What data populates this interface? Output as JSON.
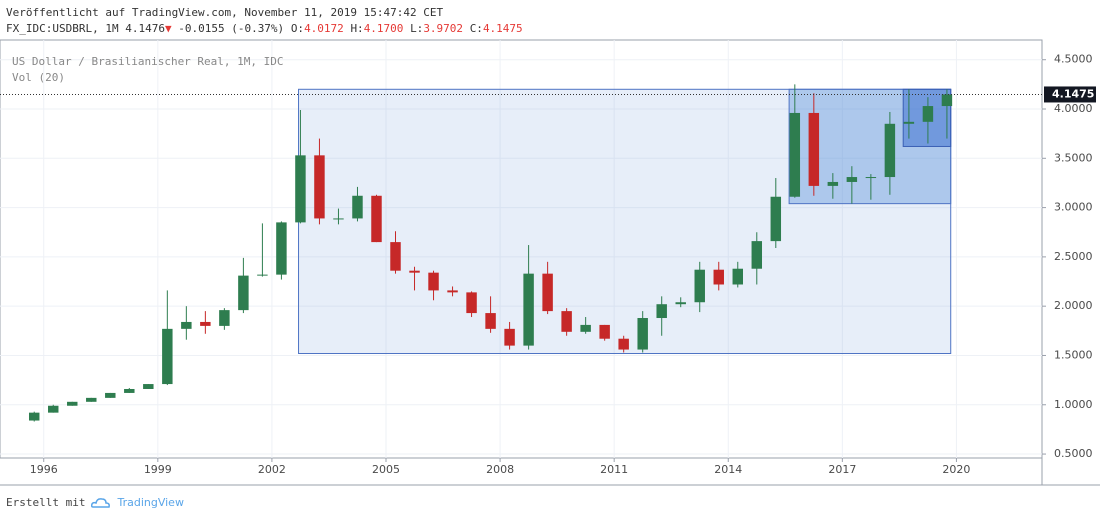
{
  "header": {
    "published": "Veröffentlicht auf TradingView.com, November 11, 2019 15:47:42 CET",
    "symbol": "FX_IDC:USDBRL, 1M",
    "last": "4.1476",
    "arrow": "▼",
    "change": "-0.0155 (-0.37%)",
    "open_label": "O:",
    "open": "4.0172",
    "high_label": "H:",
    "high": "4.1700",
    "low_label": "L:",
    "low": "3.9702",
    "close_label": "C:",
    "close": "4.1475"
  },
  "chart_data": {
    "type": "candlestick",
    "title": "US Dollar / Brasilianischer Real, 1M, IDC",
    "indicator": "Vol (20)",
    "up_color": "#2e7d4f",
    "down_color": "#c62828",
    "x": [
      1995.75,
      1996.25,
      1996.75,
      1997.25,
      1997.75,
      1998.25,
      1998.75,
      1999.25,
      1999.75,
      2000.25,
      2000.75,
      2001.25,
      2001.75,
      2002.25,
      2002.75,
      2003.25,
      2003.75,
      2004.25,
      2004.75,
      2005.25,
      2005.75,
      2006.25,
      2006.75,
      2007.25,
      2007.75,
      2008.25,
      2008.75,
      2009.25,
      2009.75,
      2010.25,
      2010.75,
      2011.25,
      2011.75,
      2012.25,
      2012.75,
      2013.25,
      2013.75,
      2014.25,
      2014.75,
      2015.25,
      2015.75,
      2016.25,
      2016.75,
      2017.25,
      2017.75,
      2018.25,
      2018.75,
      2019.25,
      2019.75
    ],
    "open": [
      0.84,
      0.92,
      0.99,
      1.03,
      1.07,
      1.12,
      1.16,
      1.21,
      1.77,
      1.84,
      1.8,
      1.96,
      2.31,
      2.32,
      2.85,
      3.53,
      2.89,
      2.89,
      3.12,
      2.65,
      2.36,
      2.34,
      2.16,
      2.14,
      1.93,
      1.77,
      1.6,
      2.33,
      1.95,
      1.74,
      1.81,
      1.67,
      1.56,
      1.88,
      2.02,
      2.04,
      2.37,
      2.22,
      2.38,
      2.66,
      3.11,
      3.96,
      3.22,
      3.26,
      3.31,
      3.31,
      3.85,
      3.87,
      4.03
    ],
    "high": [
      0.93,
      1.0,
      1.03,
      1.07,
      1.12,
      1.17,
      1.21,
      2.16,
      2.0,
      1.95,
      1.98,
      2.49,
      2.84,
      2.86,
      3.99,
      3.7,
      2.99,
      3.21,
      3.13,
      2.76,
      2.4,
      2.36,
      2.2,
      2.15,
      2.1,
      1.84,
      2.62,
      2.45,
      1.98,
      1.89,
      1.81,
      1.7,
      1.95,
      2.1,
      2.09,
      2.45,
      2.45,
      2.45,
      2.75,
      3.3,
      4.25,
      4.16,
      3.35,
      3.42,
      3.34,
      3.97,
      4.2,
      4.12,
      4.2
    ],
    "low": [
      0.83,
      0.92,
      0.99,
      1.03,
      1.07,
      1.12,
      1.16,
      1.2,
      1.66,
      1.72,
      1.76,
      1.93,
      2.3,
      2.27,
      2.84,
      2.83,
      2.83,
      2.86,
      2.65,
      2.33,
      2.16,
      2.06,
      2.1,
      1.89,
      1.73,
      1.56,
      1.56,
      1.92,
      1.7,
      1.72,
      1.65,
      1.53,
      1.53,
      1.7,
      1.99,
      1.94,
      2.16,
      2.19,
      2.22,
      2.59,
      3.1,
      3.12,
      3.09,
      3.04,
      3.08,
      3.13,
      3.7,
      3.65,
      3.7
    ],
    "close": [
      0.92,
      0.99,
      1.03,
      1.07,
      1.12,
      1.16,
      1.21,
      1.77,
      1.84,
      1.8,
      1.96,
      2.31,
      2.32,
      2.85,
      3.53,
      2.89,
      2.89,
      3.12,
      2.65,
      2.36,
      2.34,
      2.16,
      2.14,
      1.93,
      1.77,
      1.6,
      2.33,
      1.95,
      1.74,
      1.81,
      1.67,
      1.56,
      1.88,
      2.02,
      2.04,
      2.37,
      2.22,
      2.38,
      2.66,
      3.11,
      3.96,
      3.22,
      3.26,
      3.31,
      3.31,
      3.85,
      3.87,
      4.03,
      4.1475
    ],
    "last_price": 4.1475,
    "boxes": [
      {
        "x": [
          2002.7,
          2019.85
        ],
        "y": [
          1.52,
          4.2
        ],
        "color": "rgba(120,160,220,0.18)",
        "border": "#4f74c4"
      },
      {
        "x": [
          2015.6,
          2019.85
        ],
        "y": [
          3.04,
          4.2
        ],
        "color": "rgba(80,140,215,0.38)",
        "border": "#4f74c4"
      },
      {
        "x": [
          2018.6,
          2019.85
        ],
        "y": [
          3.62,
          4.2
        ],
        "color": "rgba(40,95,205,0.45)",
        "border": "#3a5fb4"
      }
    ],
    "xlim": [
      1994.85,
      2022.25
    ],
    "xticks": [
      1996,
      1999,
      2002,
      2005,
      2008,
      2011,
      2014,
      2017,
      2020
    ],
    "ylim": [
      0.46,
      4.7
    ],
    "yticks": [
      {
        "value": 0.5,
        "label": "0.5000"
      },
      {
        "value": 1,
        "label": "1.0000"
      },
      {
        "value": 1.5,
        "label": "1.5000"
      },
      {
        "value": 2,
        "label": "2.0000"
      },
      {
        "value": 2.5,
        "label": "2.5000"
      },
      {
        "value": 3,
        "label": "3.0000"
      },
      {
        "value": 3.5,
        "label": "3.5000"
      },
      {
        "value": 4,
        "label": "4.0000"
      },
      {
        "value": 4.5,
        "label": "4.5000"
      }
    ],
    "grid": true
  },
  "footer": {
    "text": "Erstellt mit",
    "brand": "TradingView"
  }
}
